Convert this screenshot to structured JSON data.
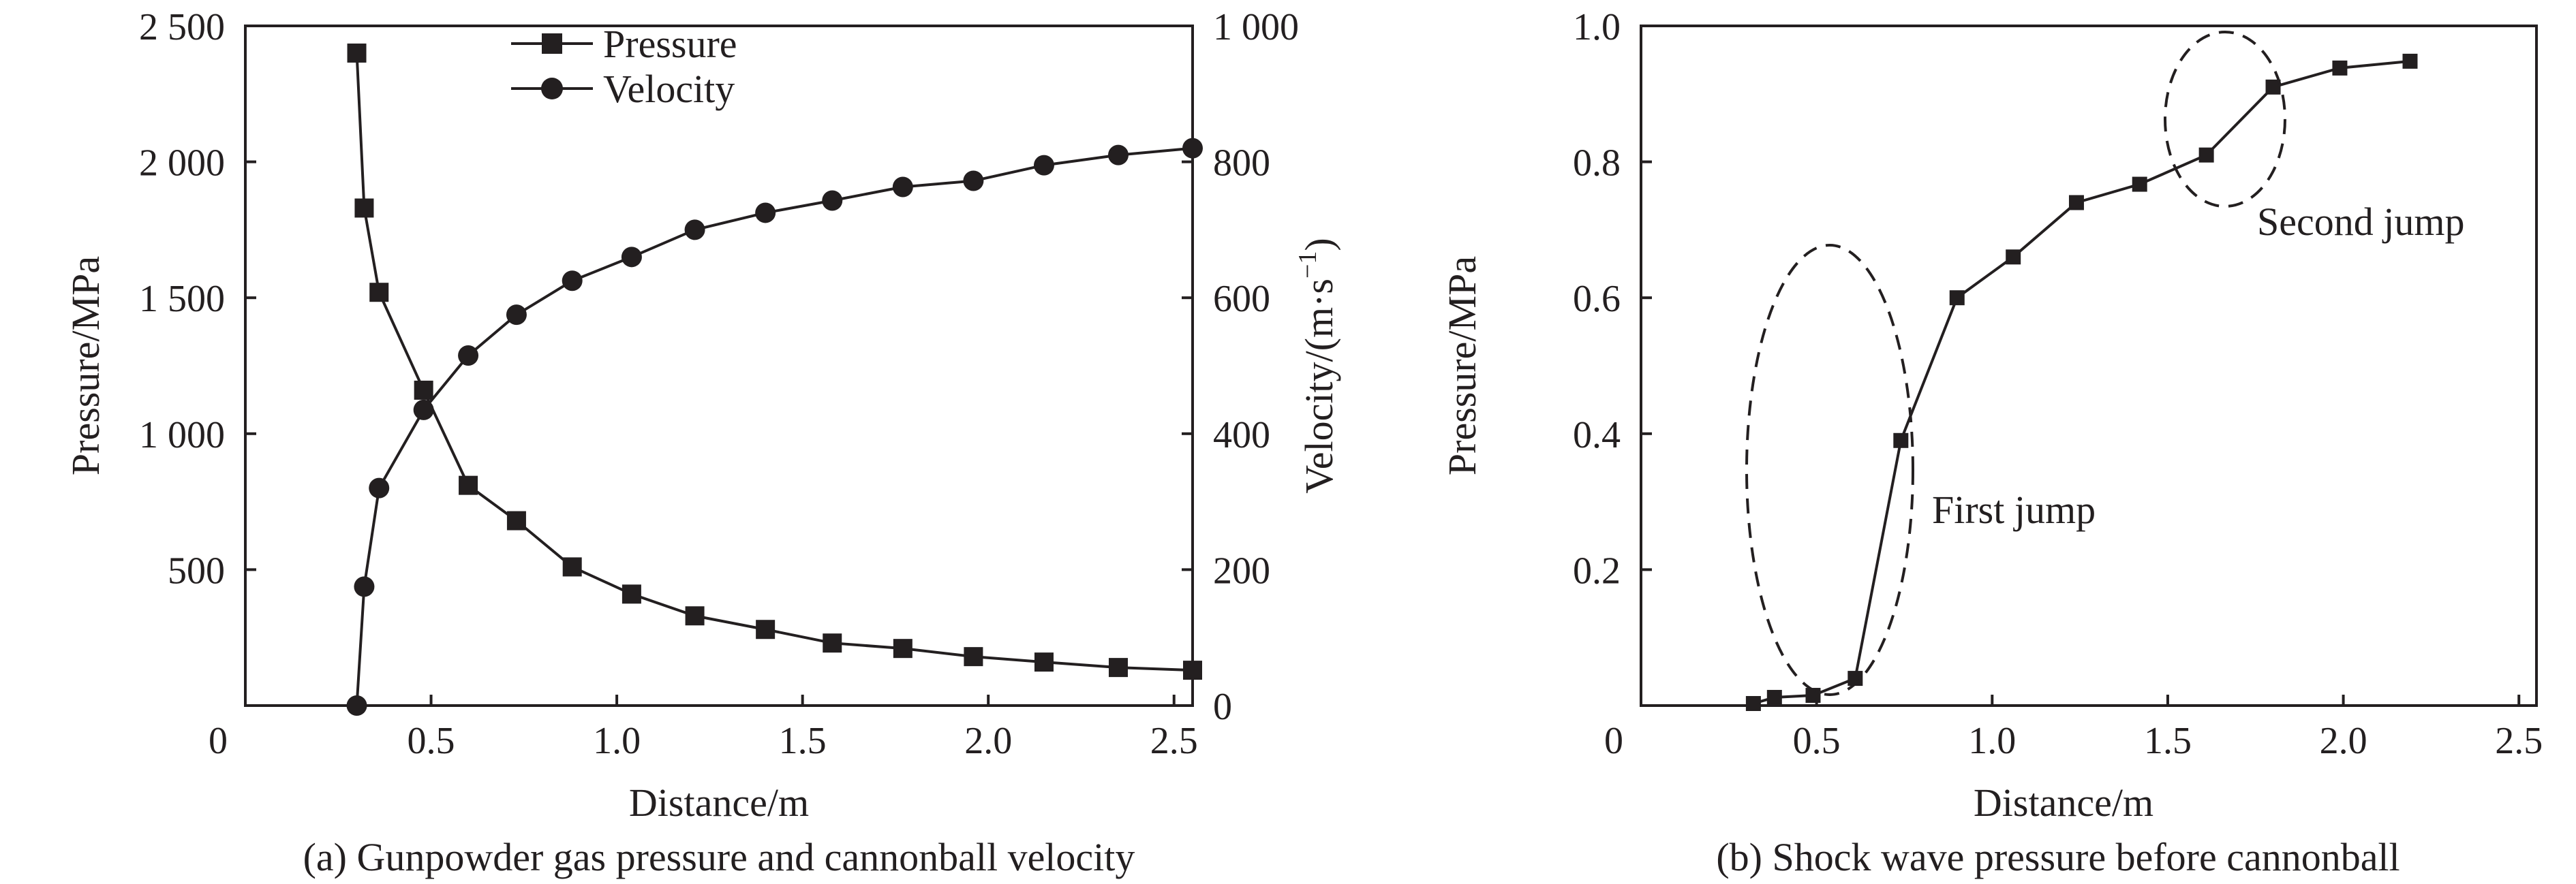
{
  "chart_data": [
    {
      "type": "line",
      "caption": "(a) Gunpowder gas pressure and cannonball velocity",
      "xlabel": "Distance/m",
      "ylabel": "Pressure/MPa",
      "y2label_main": "Velocity/(m·s",
      "y2label_sup": "−1",
      "y2label_close": ")",
      "xlim": [
        0,
        2.55
      ],
      "ylim": [
        0,
        2500
      ],
      "y2lim": [
        0,
        1000
      ],
      "x_ticks": [
        "0",
        "0.5",
        "1.0",
        "1.5",
        "2.0",
        "2.5"
      ],
      "y_ticks": [
        "500",
        "1 000",
        "1 500",
        "2 000",
        "2 500"
      ],
      "y2_ticks": [
        "0",
        "200",
        "400",
        "600",
        "800",
        "1 000"
      ],
      "legend_position": "top-center",
      "series": [
        {
          "name": "Pressure",
          "marker": "square",
          "axis": "left",
          "x": [
            0.3,
            0.32,
            0.36,
            0.48,
            0.6,
            0.73,
            0.88,
            1.04,
            1.21,
            1.4,
            1.58,
            1.77,
            1.96,
            2.15,
            2.35,
            2.55
          ],
          "y": [
            2400,
            1830,
            1520,
            1160,
            810,
            680,
            510,
            410,
            330,
            280,
            230,
            210,
            180,
            160,
            140,
            130
          ]
        },
        {
          "name": "Velocity",
          "marker": "circle",
          "axis": "right",
          "x": [
            0.3,
            0.32,
            0.36,
            0.48,
            0.6,
            0.73,
            0.88,
            1.04,
            1.21,
            1.4,
            1.58,
            1.77,
            1.96,
            2.15,
            2.35,
            2.55
          ],
          "y": [
            0,
            175,
            320,
            435,
            515,
            575,
            625,
            660,
            700,
            725,
            743,
            763,
            772,
            795,
            810,
            820
          ]
        }
      ]
    },
    {
      "type": "line",
      "caption": "(b) Shock wave pressure before cannonball",
      "xlabel": "Distance/m",
      "ylabel": "Pressure/MPa",
      "xlim": [
        0,
        2.55
      ],
      "ylim": [
        0,
        1.0
      ],
      "x_ticks": [
        "0",
        "0.5",
        "1.0",
        "1.5",
        "2.0",
        "2.5"
      ],
      "y_ticks": [
        "0.2",
        "0.4",
        "0.6",
        "0.8",
        "1.0"
      ],
      "annotations": [
        "First jump",
        "Second jump"
      ],
      "series": [
        {
          "marker": "square",
          "x": [
            0.32,
            0.38,
            0.49,
            0.61,
            0.74,
            0.9,
            1.06,
            1.24,
            1.42,
            1.61,
            1.8,
            1.99,
            2.19
          ],
          "y": [
            0.003,
            0.012,
            0.015,
            0.04,
            0.39,
            0.6,
            0.66,
            0.74,
            0.767,
            0.81,
            0.91,
            0.938,
            0.948
          ]
        }
      ]
    }
  ]
}
